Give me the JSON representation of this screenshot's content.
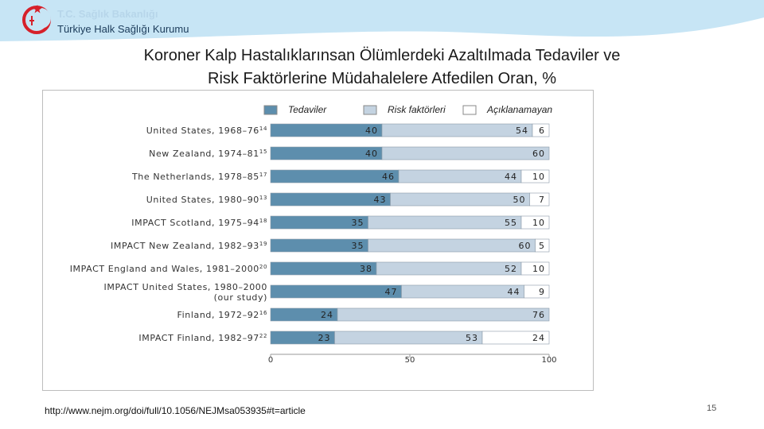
{
  "header": {
    "ministry": "T.C. Sağlık Bakanlığı",
    "institute": "Türkiye Halk Sağlığı Kurumu"
  },
  "slide": {
    "title_line1": "Koroner Kalp Hastalıklarınsan Ölümlerdeki Azaltılmada Tedaviler ve",
    "title_line2": "Risk Faktörlerine Müdahalelere Atfedilen Oran, %",
    "url": "http://www.nejm.org/doi/full/10.1056/NEJMsa053935#t=article",
    "page_number": "15"
  },
  "colors": {
    "treatments": "#5d8ead",
    "risk_factors": "#c4d3e1",
    "unexplained": "#ffffff",
    "band_light": "#c7e5f5",
    "band_dark": "#1b3b5a",
    "logo_red": "#d6202a"
  },
  "chart_data": {
    "type": "bar",
    "orientation": "horizontal",
    "stacked": true,
    "categories": [
      "United States, 1968–76 14",
      "New Zealand, 1974–81 15",
      "The Netherlands, 1978–85 17",
      "United States, 1980–90 13",
      "IMPACT Scotland, 1975–94 18",
      "IMPACT New Zealand, 1982–93 19",
      "IMPACT England and Wales, 1981–2000 20",
      "IMPACT United States, 1980–2000 (our study)",
      "Finland, 1972–92 16",
      "IMPACT Finland, 1982–97 22"
    ],
    "series": [
      {
        "name": "Tedaviler",
        "values": [
          40,
          40,
          46,
          43,
          35,
          35,
          38,
          47,
          24,
          23
        ]
      },
      {
        "name": "Risk faktörleri",
        "values": [
          54,
          60,
          44,
          50,
          55,
          60,
          52,
          44,
          76,
          53
        ]
      },
      {
        "name": "Açıklanamayan",
        "values": [
          6,
          0,
          10,
          7,
          10,
          5,
          10,
          9,
          0,
          24
        ]
      }
    ],
    "xlim": [
      0,
      100
    ],
    "xticks": [
      "0",
      "50",
      "100"
    ],
    "legend_position": "top"
  }
}
